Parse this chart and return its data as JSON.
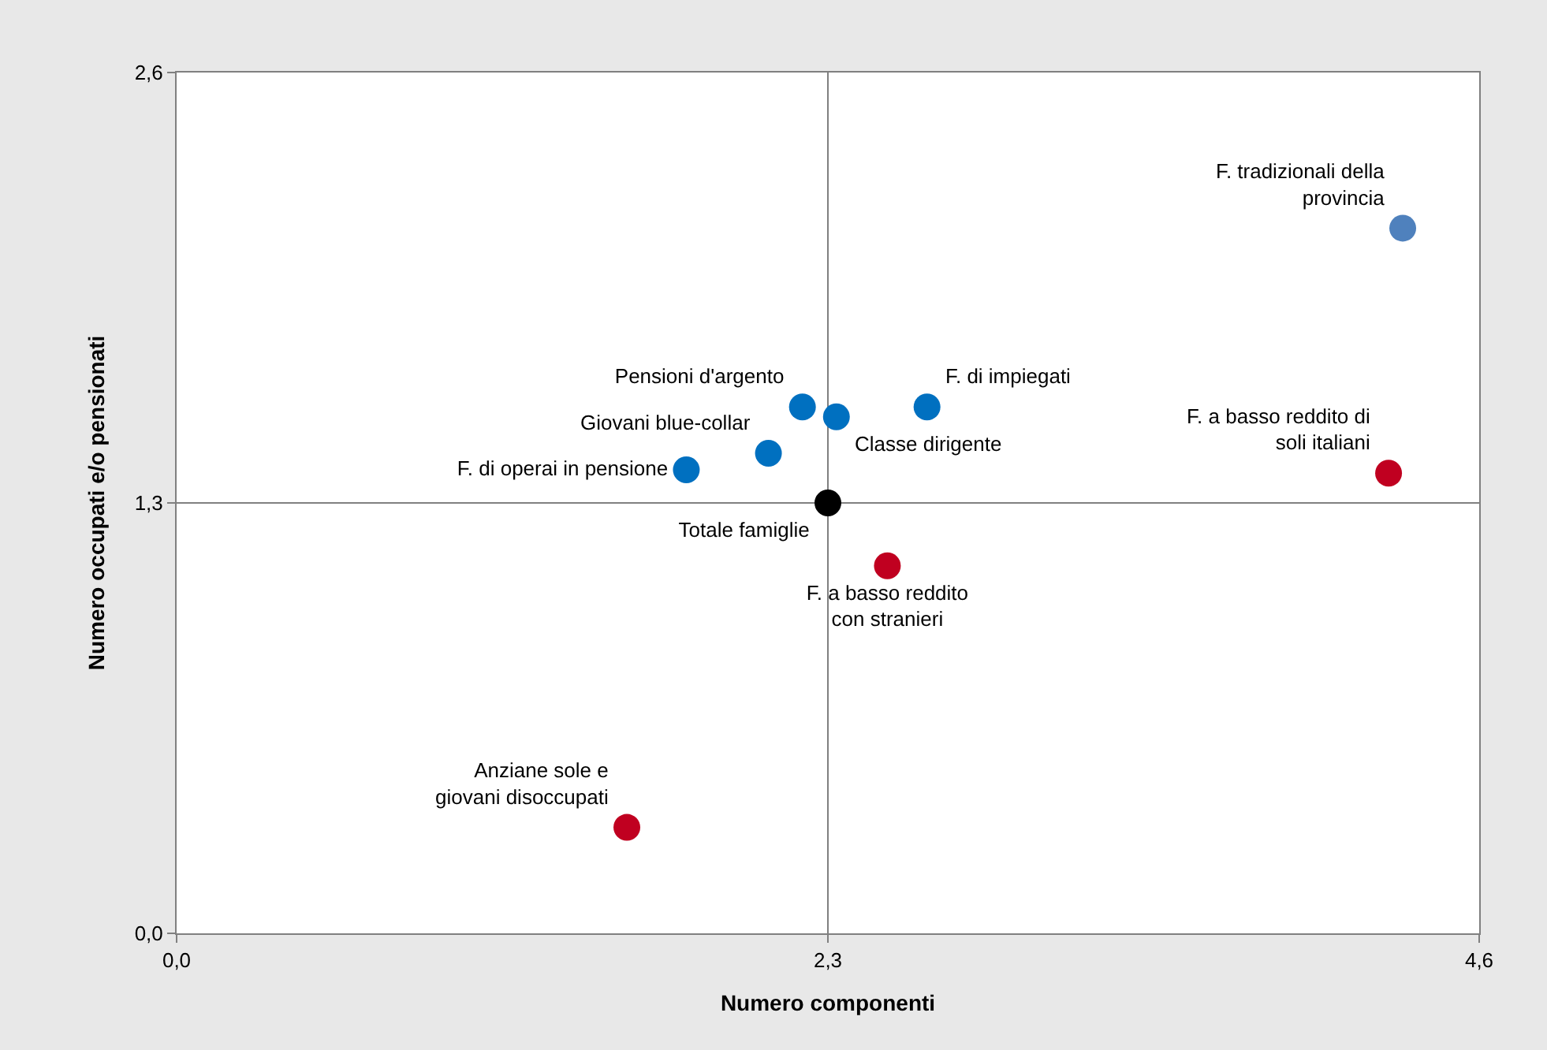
{
  "chart_data": {
    "type": "scatter",
    "xlabel": "Numero componenti",
    "ylabel": "Numero occupati e/o pensionati",
    "xlim": [
      0,
      4.6
    ],
    "xticks": [
      {
        "value": 0,
        "label": "0,0"
      },
      {
        "value": 2.3,
        "label": "2,3"
      },
      {
        "value": 4.6,
        "label": "4,6"
      }
    ],
    "ylim": [
      0,
      2.6
    ],
    "yticks": [
      {
        "value": 0,
        "label": "0,0"
      },
      {
        "value": 1.3,
        "label": "1,3"
      },
      {
        "value": 2.6,
        "label": "2,6"
      }
    ],
    "grid": true,
    "legend": false,
    "marker": "circle",
    "series": [
      {
        "name": "F. tradizionali della\nprovincia",
        "color": "#4f81bd",
        "x": [
          4.33
        ],
        "values": [
          2.13
        ]
      },
      {
        "name": "F. di impiegati",
        "color": "#0070c0",
        "x": [
          2.65
        ],
        "values": [
          1.59
        ]
      },
      {
        "name": "Pensioni d'argento",
        "color": "#0070c0",
        "x": [
          2.21
        ],
        "values": [
          1.59
        ]
      },
      {
        "name": "Classe dirigente",
        "color": "#0070c0",
        "x": [
          2.33
        ],
        "values": [
          1.56
        ]
      },
      {
        "name": "Giovani blue-collar",
        "color": "#0070c0",
        "x": [
          2.09
        ],
        "values": [
          1.45
        ]
      },
      {
        "name": "F. di operai in pensione",
        "color": "#0070c0",
        "x": [
          1.8
        ],
        "values": [
          1.4
        ]
      },
      {
        "name": "Totale famiglie",
        "color": "#000000",
        "x": [
          2.3
        ],
        "values": [
          1.3
        ]
      },
      {
        "name": "F. a basso reddito\ncon stranieri",
        "color": "#c00020",
        "x": [
          2.51
        ],
        "values": [
          1.11
        ]
      },
      {
        "name": "F. a basso reddito di\nsoli italiani",
        "color": "#c00020",
        "x": [
          4.28
        ],
        "values": [
          1.39
        ]
      },
      {
        "name": "Anziane sole e\ngiovani disoccupati",
        "color": "#c00020",
        "x": [
          1.59
        ],
        "values": [
          0.32
        ]
      }
    ]
  }
}
